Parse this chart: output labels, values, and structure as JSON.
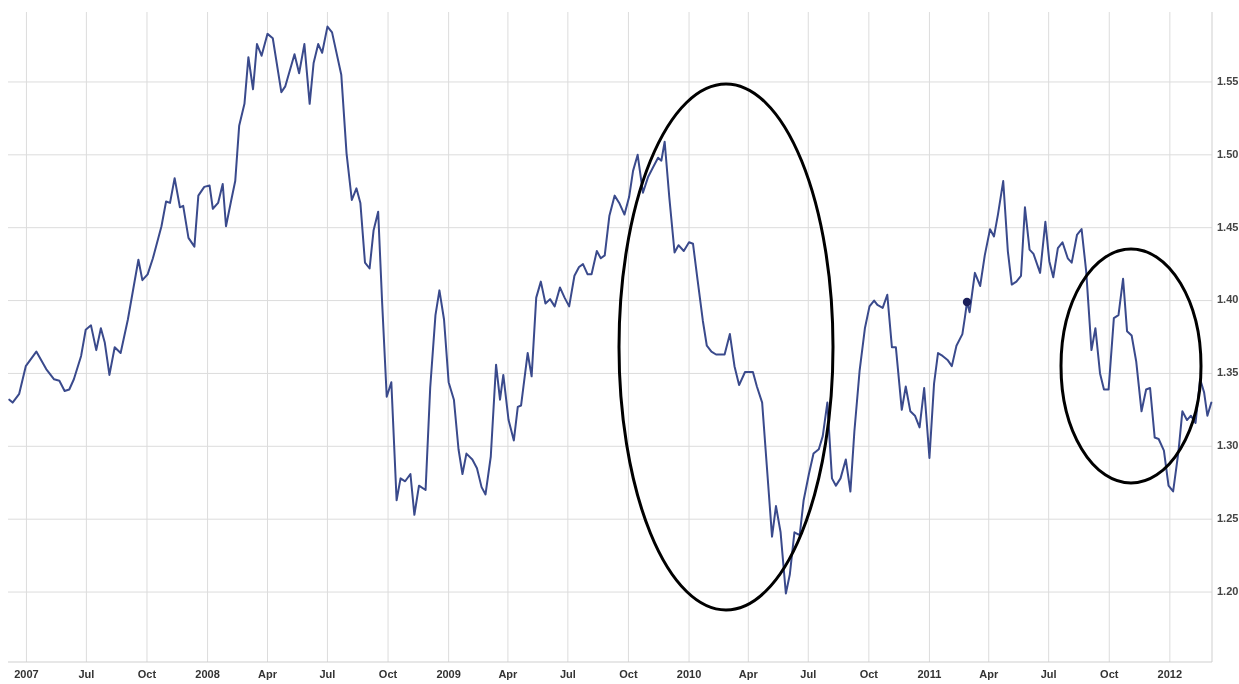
{
  "chart_data": {
    "type": "line",
    "grid": true,
    "line_style": "solid",
    "xlim": [
      "2007-03-04",
      "2012-03-05"
    ],
    "ylim": [
      1.152,
      1.598
    ],
    "xticks": [
      {
        "value": "2007-04-01",
        "label": "2007"
      },
      {
        "value": "2007-07-01",
        "label": "Jul"
      },
      {
        "value": "2007-10-01",
        "label": "Oct"
      },
      {
        "value": "2008-01-01",
        "label": "2008"
      },
      {
        "value": "2008-04-01",
        "label": "Apr"
      },
      {
        "value": "2008-07-01",
        "label": "Jul"
      },
      {
        "value": "2008-10-01",
        "label": "Oct"
      },
      {
        "value": "2009-01-01",
        "label": "2009"
      },
      {
        "value": "2009-04-01",
        "label": "Apr"
      },
      {
        "value": "2009-07-01",
        "label": "Jul"
      },
      {
        "value": "2009-10-01",
        "label": "Oct"
      },
      {
        "value": "2010-01-01",
        "label": "2010"
      },
      {
        "value": "2010-04-01",
        "label": "Apr"
      },
      {
        "value": "2010-07-01",
        "label": "Jul"
      },
      {
        "value": "2010-10-01",
        "label": "Oct"
      },
      {
        "value": "2011-01-01",
        "label": "2011"
      },
      {
        "value": "2011-04-01",
        "label": "Apr"
      },
      {
        "value": "2011-07-01",
        "label": "Jul"
      },
      {
        "value": "2011-10-01",
        "label": "Oct"
      },
      {
        "value": "2012-01-01",
        "label": "2012"
      }
    ],
    "yticks": [
      {
        "value": 1.2,
        "label": "1.20"
      },
      {
        "value": 1.25,
        "label": "1.25"
      },
      {
        "value": 1.3,
        "label": "1.30"
      },
      {
        "value": 1.35,
        "label": "1.35"
      },
      {
        "value": 1.4,
        "label": "1.40"
      },
      {
        "value": 1.45,
        "label": "1.45"
      },
      {
        "value": 1.5,
        "label": "1.50"
      },
      {
        "value": 1.55,
        "label": "1.55"
      }
    ],
    "series": [
      {
        "color": "#3a4a8c",
        "x": [
          "2007-03-06",
          "2007-03-11",
          "2007-03-21",
          "2007-03-31",
          "2007-04-16",
          "2007-05-01",
          "2007-05-13",
          "2007-05-21",
          "2007-05-29",
          "2007-06-05",
          "2007-06-12",
          "2007-06-23",
          "2007-06-30",
          "2007-07-08",
          "2007-07-16",
          "2007-07-23",
          "2007-07-29",
          "2007-08-05",
          "2007-08-13",
          "2007-08-22",
          "2007-09-02",
          "2007-09-18",
          "2007-09-24",
          "2007-10-02",
          "2007-10-10",
          "2007-10-23",
          "2007-10-30",
          "2007-11-05",
          "2007-11-12",
          "2007-11-20",
          "2007-11-25",
          "2007-12-03",
          "2007-12-12",
          "2007-12-18",
          "2007-12-27",
          "2008-01-04",
          "2008-01-09",
          "2008-01-17",
          "2008-01-24",
          "2008-01-29",
          "2008-02-06",
          "2008-02-12",
          "2008-02-18",
          "2008-02-26",
          "2008-03-03",
          "2008-03-10",
          "2008-03-16",
          "2008-03-23",
          "2008-04-01",
          "2008-04-09",
          "2008-04-22",
          "2008-04-28",
          "2008-05-12",
          "2008-05-19",
          "2008-05-27",
          "2008-06-04",
          "2008-06-10",
          "2008-06-17",
          "2008-06-23",
          "2008-07-01",
          "2008-07-08",
          "2008-07-22",
          "2008-07-30",
          "2008-08-07",
          "2008-08-14",
          "2008-08-20",
          "2008-08-27",
          "2008-09-03",
          "2008-09-09",
          "2008-09-16",
          "2008-09-22",
          "2008-09-29",
          "2008-10-06",
          "2008-10-14",
          "2008-10-20",
          "2008-10-27",
          "2008-11-04",
          "2008-11-10",
          "2008-11-17",
          "2008-11-27",
          "2008-12-04",
          "2008-12-12",
          "2008-12-18",
          "2008-12-25",
          "2009-01-01",
          "2009-01-09",
          "2009-01-16",
          "2009-01-22",
          "2009-01-28",
          "2009-02-06",
          "2009-02-13",
          "2009-02-20",
          "2009-02-26",
          "2009-03-06",
          "2009-03-14",
          "2009-03-20",
          "2009-03-25",
          "2009-04-02",
          "2009-04-10",
          "2009-04-16",
          "2009-04-21",
          "2009-05-01",
          "2009-05-07",
          "2009-05-14",
          "2009-05-21",
          "2009-05-28",
          "2009-06-04",
          "2009-06-11",
          "2009-06-19",
          "2009-06-26",
          "2009-07-03",
          "2009-07-11",
          "2009-07-18",
          "2009-07-24",
          "2009-07-31",
          "2009-08-06",
          "2009-08-14",
          "2009-08-20",
          "2009-08-26",
          "2009-09-02",
          "2009-09-10",
          "2009-09-17",
          "2009-09-25",
          "2009-10-02",
          "2009-10-08",
          "2009-10-15",
          "2009-10-23",
          "2009-10-31",
          "2009-11-08",
          "2009-11-15",
          "2009-11-20",
          "2009-11-25",
          "2009-12-02",
          "2009-12-10",
          "2009-12-16",
          "2009-12-24",
          "2010-01-01",
          "2010-01-07",
          "2010-01-14",
          "2010-01-22",
          "2010-01-28",
          "2010-02-04",
          "2010-02-11",
          "2010-02-19",
          "2010-02-24",
          "2010-03-04",
          "2010-03-11",
          "2010-03-18",
          "2010-03-27",
          "2010-04-02",
          "2010-04-08",
          "2010-04-14",
          "2010-04-22",
          "2010-04-29",
          "2010-05-07",
          "2010-05-13",
          "2010-05-20",
          "2010-05-28",
          "2010-06-03",
          "2010-06-10",
          "2010-06-18",
          "2010-06-24",
          "2010-07-02",
          "2010-07-09",
          "2010-07-17",
          "2010-07-23",
          "2010-07-30",
          "2010-08-06",
          "2010-08-12",
          "2010-08-19",
          "2010-08-27",
          "2010-09-03",
          "2010-09-09",
          "2010-09-17",
          "2010-09-25",
          "2010-10-02",
          "2010-10-09",
          "2010-10-14",
          "2010-10-22",
          "2010-10-29",
          "2010-11-05",
          "2010-11-11",
          "2010-11-20",
          "2010-11-26",
          "2010-12-03",
          "2010-12-10",
          "2010-12-17",
          "2010-12-24",
          "2011-01-01",
          "2011-01-08",
          "2011-01-14",
          "2011-01-21",
          "2011-01-29",
          "2011-02-04",
          "2011-02-11",
          "2011-02-20",
          "2011-02-24",
          "2011-02-27",
          "2011-03-03",
          "2011-03-11",
          "2011-03-19",
          "2011-03-26",
          "2011-04-03",
          "2011-04-09",
          "2011-04-15",
          "2011-04-23",
          "2011-04-30",
          "2011-05-06",
          "2011-05-13",
          "2011-05-20",
          "2011-05-26",
          "2011-06-02",
          "2011-06-08",
          "2011-06-18",
          "2011-06-26",
          "2011-07-02",
          "2011-07-08",
          "2011-07-15",
          "2011-07-22",
          "2011-07-30",
          "2011-08-05",
          "2011-08-13",
          "2011-08-20",
          "2011-08-27",
          "2011-09-04",
          "2011-09-10",
          "2011-09-17",
          "2011-09-23",
          "2011-09-30",
          "2011-10-08",
          "2011-10-15",
          "2011-10-22",
          "2011-10-28",
          "2011-11-04",
          "2011-11-11",
          "2011-11-19",
          "2011-11-26",
          "2011-12-02",
          "2011-12-09",
          "2011-12-15",
          "2011-12-23",
          "2011-12-30",
          "2012-01-06",
          "2012-01-14",
          "2012-01-20",
          "2012-01-27",
          "2012-02-02",
          "2012-02-09",
          "2012-02-16",
          "2012-02-22",
          "2012-02-27",
          "2012-03-04"
        ],
        "values": [
          1.332,
          1.33,
          1.336,
          1.355,
          1.365,
          1.353,
          1.346,
          1.345,
          1.338,
          1.339,
          1.346,
          1.362,
          1.38,
          1.383,
          1.366,
          1.381,
          1.371,
          1.349,
          1.368,
          1.364,
          1.387,
          1.428,
          1.414,
          1.418,
          1.429,
          1.451,
          1.468,
          1.467,
          1.484,
          1.464,
          1.465,
          1.443,
          1.437,
          1.472,
          1.478,
          1.479,
          1.463,
          1.467,
          1.48,
          1.451,
          1.469,
          1.482,
          1.52,
          1.535,
          1.567,
          1.545,
          1.576,
          1.568,
          1.583,
          1.58,
          1.543,
          1.547,
          1.569,
          1.556,
          1.576,
          1.535,
          1.563,
          1.576,
          1.57,
          1.588,
          1.584,
          1.555,
          1.501,
          1.469,
          1.477,
          1.467,
          1.426,
          1.422,
          1.448,
          1.461,
          1.399,
          1.334,
          1.344,
          1.263,
          1.278,
          1.276,
          1.281,
          1.253,
          1.273,
          1.27,
          1.34,
          1.39,
          1.407,
          1.387,
          1.344,
          1.332,
          1.298,
          1.281,
          1.295,
          1.291,
          1.285,
          1.272,
          1.267,
          1.293,
          1.356,
          1.332,
          1.349,
          1.318,
          1.304,
          1.327,
          1.328,
          1.364,
          1.348,
          1.402,
          1.413,
          1.398,
          1.401,
          1.396,
          1.409,
          1.402,
          1.396,
          1.417,
          1.423,
          1.425,
          1.418,
          1.418,
          1.434,
          1.429,
          1.431,
          1.458,
          1.472,
          1.467,
          1.459,
          1.471,
          1.489,
          1.5,
          1.474,
          1.485,
          1.492,
          1.498,
          1.496,
          1.509,
          1.471,
          1.433,
          1.438,
          1.434,
          1.44,
          1.439,
          1.414,
          1.386,
          1.369,
          1.365,
          1.363,
          1.363,
          1.363,
          1.377,
          1.355,
          1.342,
          1.351,
          1.351,
          1.351,
          1.341,
          1.33,
          1.287,
          1.238,
          1.259,
          1.241,
          1.199,
          1.212,
          1.241,
          1.239,
          1.263,
          1.281,
          1.295,
          1.298,
          1.307,
          1.33,
          1.278,
          1.273,
          1.278,
          1.291,
          1.269,
          1.31,
          1.352,
          1.381,
          1.396,
          1.4,
          1.397,
          1.395,
          1.404,
          1.368,
          1.368,
          1.325,
          1.341,
          1.324,
          1.321,
          1.313,
          1.34,
          1.292,
          1.343,
          1.364,
          1.362,
          1.359,
          1.355,
          1.369,
          1.377,
          1.389,
          1.399,
          1.392,
          1.419,
          1.41,
          1.431,
          1.449,
          1.444,
          1.459,
          1.482,
          1.434,
          1.411,
          1.413,
          1.417,
          1.464,
          1.435,
          1.432,
          1.419,
          1.454,
          1.427,
          1.416,
          1.436,
          1.44,
          1.429,
          1.426,
          1.445,
          1.449,
          1.42,
          1.366,
          1.381,
          1.35,
          1.339,
          1.339,
          1.388,
          1.39,
          1.415,
          1.379,
          1.376,
          1.358,
          1.324,
          1.339,
          1.34,
          1.306,
          1.305,
          1.297,
          1.273,
          1.269,
          1.296,
          1.324,
          1.318,
          1.321,
          1.316,
          1.346,
          1.337,
          1.321,
          1.33
        ]
      },
      {
        "type": "scatter",
        "marker": "circle",
        "color": "#1b1f5a",
        "x": [
          "2011-02-27"
        ],
        "values": [
          1.399
        ]
      }
    ]
  }
}
